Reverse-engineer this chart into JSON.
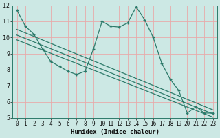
{
  "xlabel": "Humidex (Indice chaleur)",
  "bg_color": "#cce8e4",
  "line_color": "#2d7a6a",
  "grid_color_h": "#e8aaaa",
  "grid_color_v": "#e8aaaa",
  "xlim": [
    -0.5,
    23.5
  ],
  "ylim": [
    5,
    12
  ],
  "xticks": [
    0,
    1,
    2,
    3,
    4,
    5,
    6,
    7,
    8,
    9,
    10,
    11,
    12,
    13,
    14,
    15,
    16,
    17,
    18,
    19,
    20,
    21,
    22,
    23
  ],
  "yticks": [
    5,
    6,
    7,
    8,
    9,
    10,
    11,
    12
  ],
  "main_x": [
    0,
    1,
    2,
    3,
    4,
    5,
    6,
    7,
    8,
    9,
    10,
    11,
    12,
    13,
    14,
    15,
    16,
    17,
    18,
    19,
    20,
    21,
    22,
    23
  ],
  "main_y": [
    11.7,
    10.7,
    10.2,
    9.3,
    8.5,
    8.2,
    7.9,
    7.7,
    7.9,
    9.3,
    11.0,
    10.7,
    10.65,
    10.9,
    11.9,
    11.1,
    10.0,
    8.4,
    7.4,
    6.7,
    5.3,
    5.7,
    5.3,
    5.3
  ],
  "line1_x": [
    0,
    23
  ],
  "line1_y": [
    10.5,
    5.5
  ],
  "line2_x": [
    0,
    23
  ],
  "line2_y": [
    10.15,
    5.25
  ],
  "line3_x": [
    0,
    23
  ],
  "line3_y": [
    9.85,
    5.05
  ]
}
